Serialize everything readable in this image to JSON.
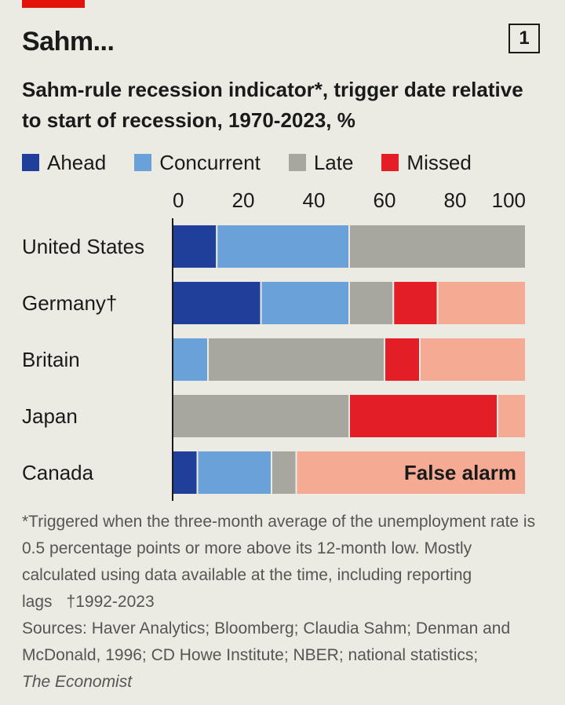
{
  "header": {
    "title": "Sahm...",
    "chart_number": "1",
    "subtitle": "Sahm-rule recession indicator*, trigger date relative to start of recession, 1970-2023, %"
  },
  "colors": {
    "ahead": "#1f3f9a",
    "concurrent": "#6aa1d8",
    "late": "#a8a79f",
    "missed": "#e41e26",
    "false_alarm": "#f5aa93",
    "background": "#ecebe3",
    "accent": "#e3120b"
  },
  "legend": [
    "Ahead",
    "Concurrent",
    "Late",
    "Missed"
  ],
  "chart_data": {
    "type": "bar",
    "orientation": "horizontal",
    "stacked": true,
    "title": "Sahm-rule recession indicator*, trigger date relative to start of recession, 1970-2023, %",
    "categories": [
      "United States",
      "Germany†",
      "Britain",
      "Japan",
      "Canada"
    ],
    "xlim": [
      0,
      100
    ],
    "xticks": [
      0,
      20,
      40,
      60,
      80,
      100
    ],
    "series": [
      {
        "name": "Ahead",
        "values": [
          12.5,
          25,
          0,
          0,
          7
        ]
      },
      {
        "name": "Concurrent",
        "values": [
          37.5,
          25,
          10,
          0,
          21
        ]
      },
      {
        "name": "Late",
        "values": [
          50,
          12.5,
          50,
          50,
          7
        ]
      },
      {
        "name": "Missed",
        "values": [
          0,
          12.5,
          10,
          42,
          0
        ]
      },
      {
        "name": "False alarm",
        "values": [
          0,
          25,
          30,
          8,
          65
        ]
      }
    ],
    "annotations": [
      {
        "category": "Canada",
        "series": "False alarm",
        "text": "False alarm"
      }
    ],
    "legend_position": "top-left",
    "grid": false
  },
  "footnotes": {
    "asterisk": "*Triggered when the three-month average of the unemployment rate is 0.5 percentage points or more above its 12-month low. Mostly calculated using data available at the time, including reporting lags",
    "dagger": "†1992-2023",
    "sources": "Sources: Haver Analytics; Bloomberg; Claudia Sahm; Denman and McDonald, 1996; CD Howe Institute; NBER; national statistics;",
    "source_publication": "The Economist"
  }
}
